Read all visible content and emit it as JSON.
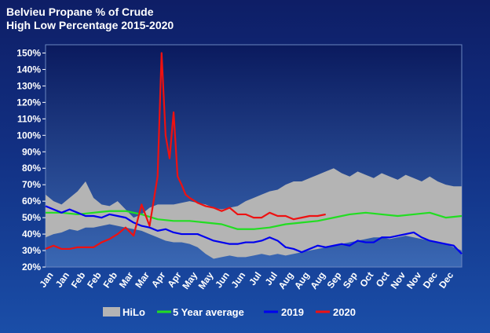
{
  "chart_data": {
    "type": "line",
    "title_lines": [
      "Belvieu Propane % of Crude",
      "High Low Percentage 2015-2020"
    ],
    "xlabel": "",
    "ylabel": "",
    "x_tick_labels": [
      "Jan",
      "Jan",
      "Feb",
      "Feb",
      "Feb",
      "Mar",
      "Mar",
      "Apr",
      "Apr",
      "May",
      "May",
      "Jun",
      "Jun",
      "Jul",
      "Jul",
      "Aug",
      "Aug",
      "Aug",
      "Sep",
      "Sep",
      "Oct",
      "Oct",
      "Nov",
      "Nov",
      "Dec",
      "Dec"
    ],
    "x_range": [
      0,
      52
    ],
    "y_ticks": [
      "20%",
      "30%",
      "40%",
      "50%",
      "60%",
      "70%",
      "80%",
      "90%",
      "100%",
      "110%",
      "120%",
      "130%",
      "140%",
      "150%"
    ],
    "ylim": [
      20,
      155
    ],
    "grid": false,
    "legend_position": "bottom",
    "colors": {
      "hilo": "#b4b4b4",
      "avg": "#22dd22",
      "y2019": "#0000ee",
      "y2020": "#ee1111",
      "plot_top": "#0a1a5e",
      "plot_bottom": "#3a68b4"
    },
    "hilo": {
      "name": "HiLo",
      "x": [
        0,
        1,
        2,
        3,
        4,
        5,
        6,
        7,
        8,
        9,
        10,
        11,
        12,
        13,
        14,
        15,
        16,
        17,
        18,
        19,
        20,
        21,
        22,
        23,
        24,
        25,
        26,
        27,
        28,
        29,
        30,
        31,
        32,
        33,
        34,
        35,
        36,
        37,
        38,
        39,
        40,
        41,
        42,
        43,
        44,
        45,
        46,
        47,
        48,
        49,
        50,
        51,
        52
      ],
      "high": [
        64,
        60,
        58,
        62,
        66,
        72,
        62,
        58,
        57,
        60,
        55,
        50,
        52,
        56,
        58,
        58,
        58,
        59,
        60,
        59,
        58,
        56,
        55,
        56,
        57,
        60,
        62,
        64,
        66,
        67,
        70,
        72,
        72,
        74,
        76,
        78,
        80,
        77,
        75,
        78,
        76,
        74,
        77,
        75,
        73,
        76,
        74,
        72,
        75,
        72,
        70,
        69,
        69
      ],
      "low": [
        38,
        40,
        41,
        43,
        42,
        44,
        44,
        45,
        46,
        45,
        44,
        43,
        42,
        40,
        38,
        36,
        35,
        35,
        34,
        32,
        28,
        25,
        26,
        27,
        26,
        26,
        27,
        28,
        27,
        28,
        27,
        28,
        29,
        30,
        31,
        32,
        33,
        34,
        35,
        36,
        37,
        38,
        38,
        37,
        38,
        39,
        38,
        37,
        36,
        35,
        34,
        32,
        30
      ]
    },
    "series": [
      {
        "name": "5 Year average",
        "x": [
          0,
          2,
          4,
          6,
          8,
          10,
          12,
          14,
          16,
          18,
          20,
          22,
          24,
          26,
          28,
          30,
          32,
          34,
          36,
          38,
          40,
          42,
          44,
          46,
          48,
          50,
          52
        ],
        "y": [
          53,
          53,
          52,
          53,
          54,
          54,
          52,
          49,
          48,
          48,
          47,
          46,
          43,
          43,
          44,
          46,
          47,
          48,
          50,
          52,
          53,
          52,
          51,
          52,
          53,
          50,
          51
        ]
      },
      {
        "name": "2019",
        "x": [
          0,
          1,
          2,
          3,
          4,
          5,
          6,
          7,
          8,
          9,
          10,
          11,
          12,
          13,
          14,
          15,
          16,
          17,
          18,
          19,
          20,
          21,
          22,
          23,
          24,
          25,
          26,
          27,
          28,
          29,
          30,
          31,
          32,
          33,
          34,
          35,
          36,
          37,
          38,
          39,
          40,
          41,
          42,
          43,
          44,
          45,
          46,
          47,
          48,
          49,
          50,
          51,
          52
        ],
        "y": [
          57,
          55,
          53,
          55,
          53,
          51,
          51,
          50,
          52,
          51,
          50,
          47,
          45,
          44,
          42,
          43,
          41,
          40,
          40,
          40,
          38,
          36,
          35,
          34,
          34,
          35,
          35,
          36,
          38,
          36,
          32,
          31,
          29,
          31,
          33,
          32,
          33,
          34,
          33,
          36,
          35,
          35,
          38,
          38,
          39,
          40,
          41,
          38,
          36,
          35,
          34,
          33,
          28
        ]
      },
      {
        "name": "2020",
        "x": [
          0,
          1,
          2,
          3,
          4,
          5,
          6,
          7,
          8,
          9,
          10,
          11,
          12,
          13,
          14,
          14.5,
          15,
          15.5,
          16,
          16.5,
          17,
          17.5,
          18,
          19,
          20,
          21,
          22,
          23,
          24,
          25,
          26,
          27,
          28,
          29,
          30,
          31,
          32,
          33,
          34,
          35
        ],
        "y": [
          31,
          33,
          31,
          31,
          32,
          32,
          32,
          35,
          37,
          40,
          44,
          39,
          58,
          45,
          75,
          150,
          100,
          86,
          114,
          75,
          70,
          64,
          62,
          59,
          57,
          56,
          54,
          56,
          52,
          52,
          50,
          50,
          53,
          51,
          51,
          49,
          50,
          51,
          51,
          52
        ]
      }
    ]
  }
}
